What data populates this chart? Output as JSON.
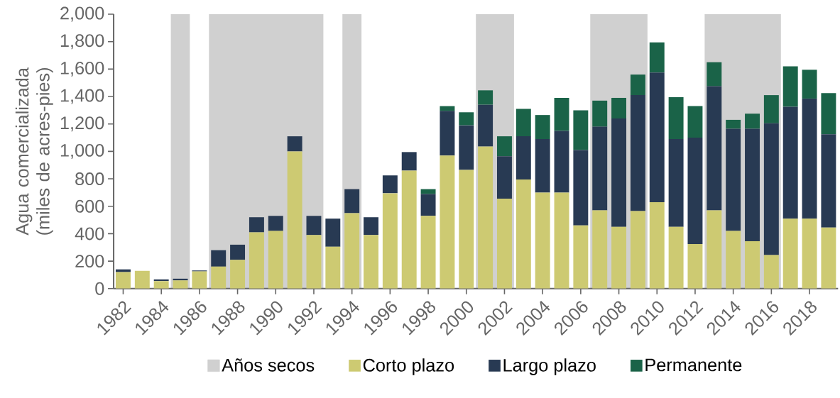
{
  "chart_data": {
    "type": "bar",
    "stacked": true,
    "ylabel": "Agua comercializada (miles de acres-pies)",
    "x": [
      1982,
      1983,
      1984,
      1985,
      1986,
      1987,
      1988,
      1989,
      1990,
      1991,
      1992,
      1993,
      1994,
      1995,
      1996,
      1997,
      1998,
      1999,
      2000,
      2001,
      2002,
      2003,
      2004,
      2005,
      2006,
      2007,
      2008,
      2009,
      2010,
      2011,
      2012,
      2013,
      2014,
      2015,
      2016,
      2017,
      2018,
      2019
    ],
    "xlim": [
      1981.5,
      2019.5
    ],
    "xticks": [
      1982,
      1984,
      1986,
      1988,
      1990,
      1992,
      1994,
      1996,
      1998,
      2000,
      2002,
      2004,
      2006,
      2008,
      2010,
      2012,
      2014,
      2016,
      2018
    ],
    "ylim": [
      0,
      2000
    ],
    "yticks": [
      0,
      200,
      400,
      600,
      800,
      {
        "value": 1000,
        "label": "1,000"
      },
      {
        "value": 1200,
        "label": "1,200"
      },
      {
        "value": 1400,
        "label": "1,400"
      },
      {
        "value": 1600,
        "label": "1,600"
      },
      {
        "value": 1800,
        "label": "1,800"
      },
      {
        "value": 2000,
        "label": "2,000"
      }
    ],
    "series": [
      {
        "name": "Corto plazo",
        "color": "#cdca72",
        "values": [
          120,
          130,
          55,
          60,
          125,
          160,
          210,
          410,
          420,
          1000,
          390,
          305,
          550,
          390,
          695,
          860,
          530,
          970,
          865,
          1035,
          655,
          795,
          700,
          700,
          460,
          570,
          450,
          565,
          630,
          450,
          325,
          570,
          420,
          345,
          245,
          510,
          510,
          445
        ]
      },
      {
        "name": "Largo plazo",
        "color": "#283a53",
        "values": [
          20,
          0,
          12,
          12,
          7,
          120,
          110,
          110,
          110,
          110,
          140,
          205,
          175,
          130,
          130,
          135,
          160,
          325,
          325,
          305,
          310,
          315,
          390,
          450,
          550,
          610,
          790,
          845,
          945,
          640,
          775,
          905,
          745,
          820,
          960,
          815,
          875,
          680
        ]
      },
      {
        "name": "Permanente",
        "color": "#1a6348",
        "values": [
          0,
          0,
          0,
          0,
          0,
          0,
          0,
          0,
          0,
          0,
          0,
          0,
          0,
          0,
          0,
          0,
          35,
          35,
          95,
          105,
          145,
          200,
          175,
          240,
          290,
          190,
          150,
          150,
          220,
          305,
          230,
          175,
          65,
          110,
          205,
          295,
          210,
          300
        ]
      }
    ],
    "bands": [
      {
        "axis": "x",
        "from": 1984.5,
        "to": 1985.5,
        "label": "Años secos",
        "color": "#d0d0d0"
      },
      {
        "axis": "x",
        "from": 1986.5,
        "to": 1992.5,
        "color": "#d0d0d0"
      },
      {
        "axis": "x",
        "from": 1993.5,
        "to": 1994.5,
        "color": "#d0d0d0"
      },
      {
        "axis": "x",
        "from": 2000.5,
        "to": 2002.5,
        "color": "#d0d0d0"
      },
      {
        "axis": "x",
        "from": 2006.5,
        "to": 2009.5,
        "color": "#d0d0d0"
      },
      {
        "axis": "x",
        "from": 2012.5,
        "to": 2016.5,
        "color": "#d0d0d0"
      }
    ],
    "grid": false,
    "legend": "bottom"
  }
}
